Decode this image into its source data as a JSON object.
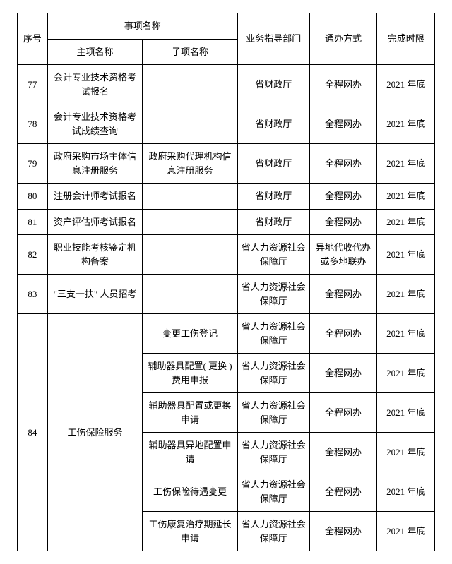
{
  "header": {
    "seq": "序号",
    "item_group": "事项名称",
    "main_item": "主项名称",
    "sub_item": "子项名称",
    "dept": "业务指导部门",
    "mode": "通办方式",
    "deadline": "完成时限"
  },
  "rows": [
    {
      "seq": "77",
      "main": "会计专业技术资格考试报名",
      "sub": "",
      "dept": "省财政厅",
      "mode": "全程网办",
      "deadline": "2021 年底"
    },
    {
      "seq": "78",
      "main": "会计专业技术资格考试成绩查询",
      "sub": "",
      "dept": "省财政厅",
      "mode": "全程网办",
      "deadline": "2021 年底"
    },
    {
      "seq": "79",
      "main": "政府采购市场主体信息注册服务",
      "sub": "政府采购代理机构信息注册服务",
      "dept": "省财政厅",
      "mode": "全程网办",
      "deadline": "2021 年底"
    },
    {
      "seq": "80",
      "main": "注册会计师考试报名",
      "sub": "",
      "dept": "省财政厅",
      "mode": "全程网办",
      "deadline": "2021 年底"
    },
    {
      "seq": "81",
      "main": "资产评估师考试报名",
      "sub": "",
      "dept": "省财政厅",
      "mode": "全程网办",
      "deadline": "2021 年底"
    },
    {
      "seq": "82",
      "main": "职业技能考核鉴定机构备案",
      "sub": "",
      "dept": "省人力资源社会保障厅",
      "mode": "异地代收代办或多地联办",
      "deadline": "2021 年底"
    },
    {
      "seq": "83",
      "main": "\"三支一扶\" 人员招考",
      "sub": "",
      "dept": "省人力资源社会保障厅",
      "mode": "全程网办",
      "deadline": "2021 年底"
    }
  ],
  "group84": {
    "seq": "84",
    "main": "工伤保险服务",
    "subs": [
      {
        "sub": "变更工伤登记",
        "dept": "省人力资源社会保障厅",
        "mode": "全程网办",
        "deadline": "2021 年底"
      },
      {
        "sub": "辅助器具配置( 更换 )费用申报",
        "dept": "省人力资源社会保障厅",
        "mode": "全程网办",
        "deadline": "2021 年底"
      },
      {
        "sub": "辅助器具配置或更换申请",
        "dept": "省人力资源社会保障厅",
        "mode": "全程网办",
        "deadline": "2021 年底"
      },
      {
        "sub": "辅助器具异地配置申请",
        "dept": "省人力资源社会保障厅",
        "mode": "全程网办",
        "deadline": "2021 年底"
      },
      {
        "sub": "工伤保险待遇变更",
        "dept": "省人力资源社会保障厅",
        "mode": "全程网办",
        "deadline": "2021 年底"
      },
      {
        "sub": "工伤康复治疗期延长申请",
        "dept": "省人力资源社会保障厅",
        "mode": "全程网办",
        "deadline": "2021 年底"
      }
    ]
  },
  "style": {
    "border_color": "#000000",
    "background": "#ffffff",
    "text_color": "#000000",
    "font_size_pt": 10
  }
}
